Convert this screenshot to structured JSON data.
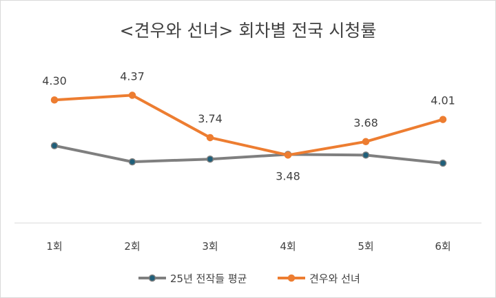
{
  "chart_data": {
    "type": "line",
    "title": "<견우와 선녀> 회차별 전국 시청률",
    "categories": [
      "1회",
      "2회",
      "3회",
      "4회",
      "5회",
      "6회"
    ],
    "series": [
      {
        "name": "25년 전작들 평균",
        "values": [
          3.62,
          3.38,
          3.42,
          3.49,
          3.48,
          3.36
        ],
        "color": "#7f7f7f",
        "marker_fill": "#1f5f7a",
        "show_labels": false
      },
      {
        "name": "견우와 선녀",
        "values": [
          4.3,
          4.37,
          3.74,
          3.48,
          3.68,
          4.01
        ],
        "labels": [
          "4.30",
          "4.37",
          "3.74",
          "3.48",
          "3.68",
          "4.01"
        ],
        "color": "#ed7d31",
        "marker_fill": "#ed7d31",
        "show_labels": true
      }
    ],
    "ylim": [
      2.47,
      5.06
    ],
    "legend_position": "bottom",
    "grid": false,
    "xlabel": "",
    "ylabel": ""
  }
}
